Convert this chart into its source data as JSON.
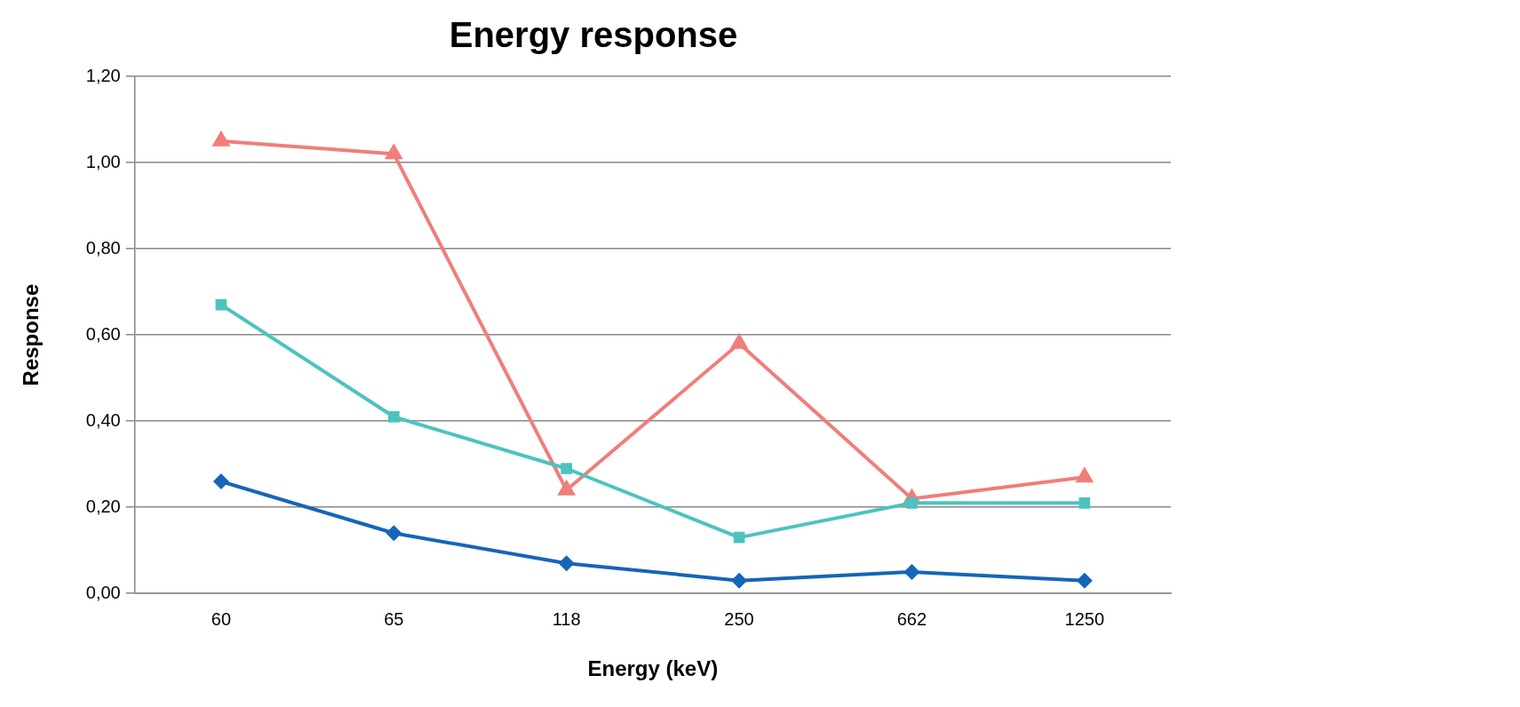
{
  "chart_data": {
    "type": "line",
    "title": "Energy response",
    "xlabel": "Energy (keV)",
    "ylabel": "Response",
    "categories": [
      "60",
      "65",
      "118",
      "250",
      "662",
      "1250"
    ],
    "series": [
      {
        "color": "#1565b8",
        "marker": "diamond",
        "values": [
          0.26,
          0.14,
          0.07,
          0.03,
          0.05,
          0.03
        ]
      },
      {
        "color": "#4cc3bf",
        "marker": "square",
        "values": [
          0.67,
          0.41,
          0.29,
          0.13,
          0.21,
          0.21
        ]
      },
      {
        "color": "#f07e7a",
        "marker": "triangle",
        "values": [
          1.05,
          1.02,
          0.24,
          0.58,
          0.22,
          0.27
        ]
      }
    ],
    "ylim": [
      0,
      1.2
    ],
    "yticks": [
      {
        "value": 0,
        "label": "0,00"
      },
      {
        "value": 0.2,
        "label": "0,20"
      },
      {
        "value": 0.4,
        "label": "0,40"
      },
      {
        "value": 0.6,
        "label": "0,60"
      },
      {
        "value": 0.8,
        "label": "0,80"
      },
      {
        "value": 1,
        "label": "1,00"
      },
      {
        "value": 1.2,
        "label": "1,20"
      }
    ],
    "grid": "y",
    "legend": false,
    "line_style": "solid"
  }
}
